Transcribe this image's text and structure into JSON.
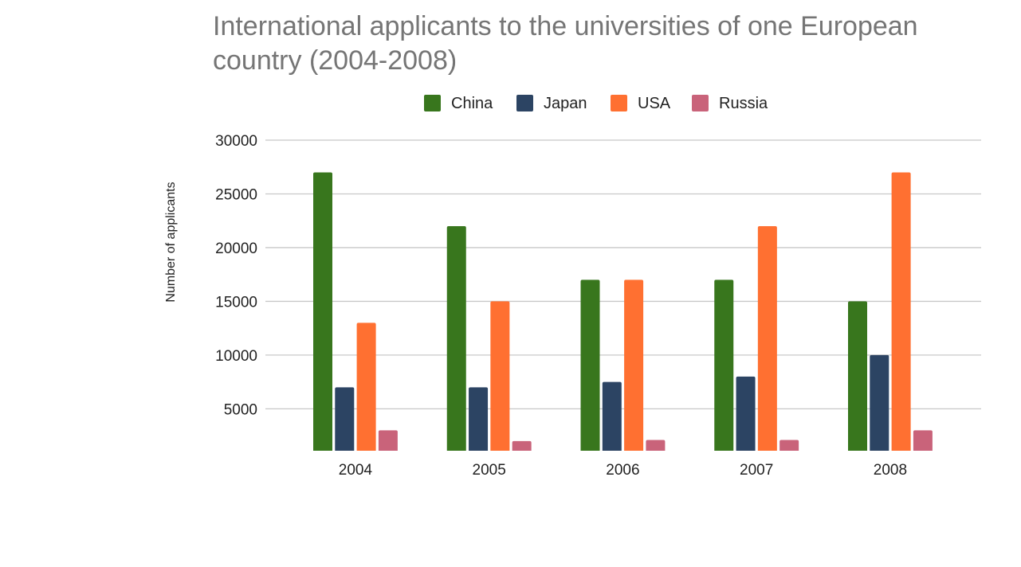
{
  "chart_data": {
    "type": "bar",
    "title_lines": [
      "International applicants to the universities of one European",
      "country (2004-2008)"
    ],
    "ylabel": "Number of applicants",
    "xlabel": "",
    "categories": [
      "2004",
      "2005",
      "2006",
      "2007",
      "2008"
    ],
    "series": [
      {
        "name": "China",
        "color": "#38761d",
        "values": [
          27000,
          22000,
          17000,
          17000,
          15000
        ]
      },
      {
        "name": "Japan",
        "color": "#2c4463",
        "values": [
          7000,
          7000,
          7500,
          8000,
          10000
        ]
      },
      {
        "name": "USA",
        "color": "#ff7031",
        "values": [
          13000,
          15000,
          17000,
          22000,
          27000
        ]
      },
      {
        "name": "Russia",
        "color": "#c9637a",
        "values": [
          3000,
          2000,
          2100,
          2100,
          3000
        ]
      }
    ],
    "ylim": [
      1100,
      30000
    ],
    "yticks": [
      "5000",
      "10000",
      "15000",
      "20000",
      "25000",
      "30000"
    ],
    "grid": true,
    "legend_position": "top"
  }
}
